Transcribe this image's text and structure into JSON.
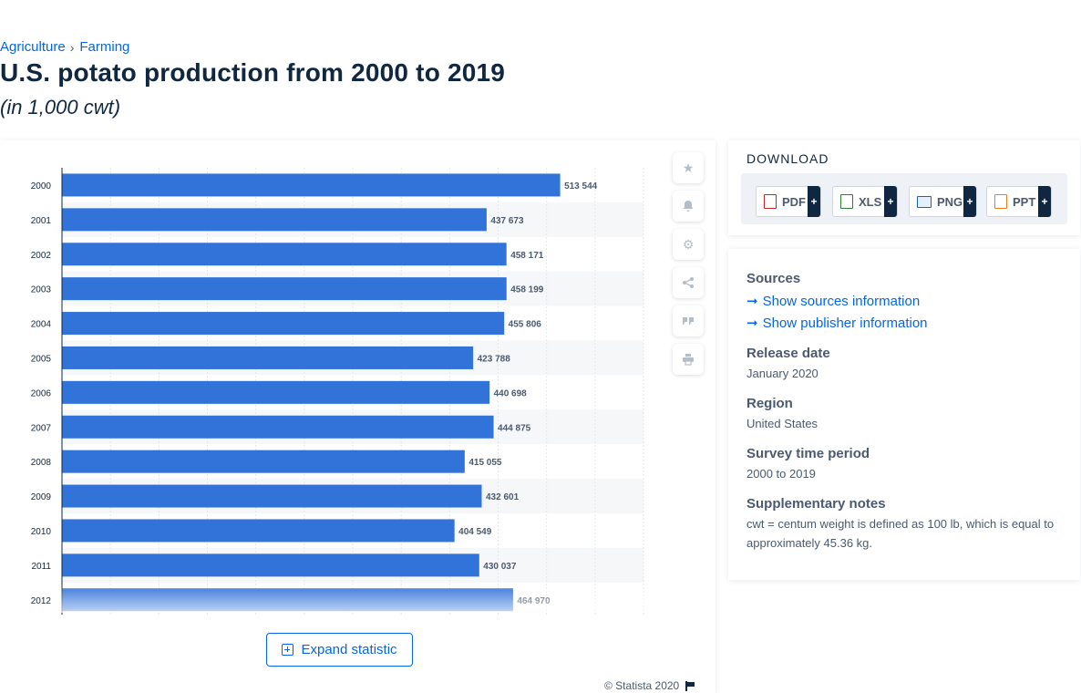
{
  "breadcrumb": {
    "items": [
      "Agriculture",
      "Farming"
    ],
    "separator": "›"
  },
  "header": {
    "title": "U.S. potato production from 2000 to 2019",
    "subtitle": "(in 1,000 cwt)"
  },
  "chart_data": {
    "type": "bar",
    "orientation": "horizontal",
    "categories": [
      "2000",
      "2001",
      "2002",
      "2003",
      "2004",
      "2005",
      "2006",
      "2007",
      "2008",
      "2009",
      "2010",
      "2011",
      "2012"
    ],
    "values": [
      513544,
      437673,
      458171,
      458199,
      455806,
      423788,
      440698,
      444875,
      415055,
      432601,
      404549,
      430037,
      464970
    ],
    "value_labels": [
      "513 544",
      "437 673",
      "458 171",
      "458 199",
      "455 806",
      "423 788",
      "440 698",
      "444 875",
      "415 055",
      "432 601",
      "404 549",
      "430 037",
      "464 970"
    ],
    "xlim": [
      0,
      600000
    ],
    "grid": true,
    "bar_color": "#3273d9",
    "title": "",
    "xlabel": "",
    "ylabel": ""
  },
  "tools": {
    "icons": [
      "star-icon",
      "bell-icon",
      "gear-icon",
      "share-icon",
      "quote-icon",
      "print-icon"
    ]
  },
  "expand": {
    "label": "Expand statistic"
  },
  "copyright": "© Statista 2020",
  "download": {
    "title": "DOWNLOAD",
    "buttons": [
      {
        "label": "PDF",
        "plus": "+"
      },
      {
        "label": "XLS",
        "plus": "+"
      },
      {
        "label": "PNG",
        "plus": "+"
      },
      {
        "label": "PPT",
        "plus": "+"
      }
    ]
  },
  "info": {
    "sources_label": "Sources",
    "sources_link": "Show sources information",
    "publisher_link": "Show publisher information",
    "release_label": "Release date",
    "release_value": "January 2020",
    "region_label": "Region",
    "region_value": "United States",
    "survey_label": "Survey time period",
    "survey_value": "2000 to 2019",
    "notes_label": "Supplementary notes",
    "notes_value": "cwt = centum weight is defined as 100 lb, which is equal to approximately 45.36 kg."
  }
}
